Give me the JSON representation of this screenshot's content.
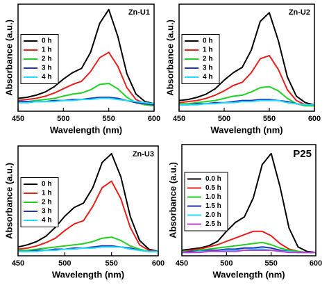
{
  "chart_data": [
    {
      "type": "line",
      "title": "Zn-U1",
      "xlabel": "Wavelength (nm)",
      "ylabel": "Absorbance (a.u.)",
      "x": [
        450,
        460,
        470,
        480,
        490,
        500,
        510,
        520,
        530,
        540,
        550,
        560,
        570,
        580,
        590,
        600
      ],
      "xlim": [
        450,
        600
      ],
      "xticks": [
        450,
        500,
        550,
        600
      ],
      "ylim": [
        0,
        1
      ],
      "legend": "center left",
      "series": [
        {
          "name": "0 h",
          "color": "#000000",
          "values": [
            0.12,
            0.13,
            0.15,
            0.18,
            0.23,
            0.3,
            0.36,
            0.4,
            0.55,
            0.82,
            0.95,
            0.7,
            0.35,
            0.16,
            0.09,
            0.07
          ]
        },
        {
          "name": "1 h",
          "color": "#e8201c",
          "values": [
            0.1,
            0.11,
            0.12,
            0.14,
            0.17,
            0.21,
            0.25,
            0.28,
            0.37,
            0.5,
            0.55,
            0.42,
            0.22,
            0.11,
            0.07,
            0.06
          ]
        },
        {
          "name": "2 h",
          "color": "#22d022",
          "values": [
            0.09,
            0.09,
            0.1,
            0.11,
            0.12,
            0.14,
            0.16,
            0.17,
            0.2,
            0.25,
            0.26,
            0.21,
            0.13,
            0.08,
            0.06,
            0.05
          ]
        },
        {
          "name": "3 h",
          "color": "#2233b8",
          "values": [
            0.09,
            0.09,
            0.09,
            0.09,
            0.1,
            0.1,
            0.11,
            0.11,
            0.12,
            0.13,
            0.13,
            0.12,
            0.1,
            0.08,
            0.07,
            0.06
          ]
        },
        {
          "name": "4 h",
          "color": "#22dcff",
          "values": [
            0.08,
            0.08,
            0.09,
            0.09,
            0.09,
            0.1,
            0.1,
            0.11,
            0.11,
            0.12,
            0.12,
            0.11,
            0.1,
            0.09,
            0.08,
            0.07
          ]
        }
      ]
    },
    {
      "type": "line",
      "title": "Zn-U2",
      "xlabel": "Wavelength (nm)",
      "ylabel": "Absorbance (a.u.)",
      "x": [
        450,
        460,
        470,
        480,
        490,
        500,
        510,
        520,
        530,
        540,
        550,
        560,
        570,
        580,
        590,
        600
      ],
      "xlim": [
        450,
        600
      ],
      "xticks": [
        450,
        500,
        550,
        600
      ],
      "ylim": [
        0,
        1
      ],
      "legend": "center left",
      "series": [
        {
          "name": "0 h",
          "color": "#000000",
          "values": [
            0.1,
            0.11,
            0.13,
            0.16,
            0.21,
            0.29,
            0.36,
            0.41,
            0.57,
            0.84,
            0.92,
            0.66,
            0.32,
            0.14,
            0.08,
            0.06
          ]
        },
        {
          "name": "1 h",
          "color": "#e8201c",
          "values": [
            0.08,
            0.09,
            0.1,
            0.12,
            0.15,
            0.19,
            0.24,
            0.27,
            0.36,
            0.49,
            0.52,
            0.39,
            0.2,
            0.1,
            0.06,
            0.05
          ]
        },
        {
          "name": "2 h",
          "color": "#22d022",
          "values": [
            0.07,
            0.07,
            0.08,
            0.09,
            0.1,
            0.12,
            0.14,
            0.15,
            0.18,
            0.22,
            0.23,
            0.19,
            0.12,
            0.07,
            0.05,
            0.05
          ]
        },
        {
          "name": "3 h",
          "color": "#2233b8",
          "values": [
            0.06,
            0.06,
            0.07,
            0.07,
            0.08,
            0.08,
            0.09,
            0.1,
            0.1,
            0.11,
            0.11,
            0.1,
            0.09,
            0.07,
            0.06,
            0.06
          ]
        },
        {
          "name": "4 h",
          "color": "#22dcff",
          "values": [
            0.06,
            0.06,
            0.06,
            0.07,
            0.07,
            0.08,
            0.08,
            0.09,
            0.09,
            0.1,
            0.1,
            0.1,
            0.08,
            0.07,
            0.06,
            0.06
          ]
        }
      ]
    },
    {
      "type": "line",
      "title": "Zn-U3",
      "xlabel": "Wavelength (nm)",
      "ylabel": "Absorbance (a.u.)",
      "x": [
        450,
        460,
        470,
        480,
        490,
        500,
        510,
        520,
        530,
        540,
        550,
        560,
        570,
        580,
        590,
        600
      ],
      "xlim": [
        450,
        600
      ],
      "xticks": [
        450,
        500,
        550,
        600
      ],
      "ylim": [
        0,
        1
      ],
      "legend": "center left",
      "series": [
        {
          "name": "0 h",
          "color": "#000000",
          "values": [
            0.08,
            0.1,
            0.13,
            0.18,
            0.26,
            0.36,
            0.44,
            0.48,
            0.62,
            0.85,
            0.93,
            0.72,
            0.36,
            0.14,
            0.06,
            0.04
          ]
        },
        {
          "name": "1 h",
          "color": "#e8201c",
          "values": [
            0.06,
            0.07,
            0.09,
            0.12,
            0.16,
            0.23,
            0.29,
            0.32,
            0.45,
            0.62,
            0.68,
            0.52,
            0.26,
            0.1,
            0.05,
            0.04
          ]
        },
        {
          "name": "2 h",
          "color": "#22d022",
          "values": [
            0.05,
            0.05,
            0.06,
            0.07,
            0.08,
            0.09,
            0.1,
            0.11,
            0.13,
            0.16,
            0.17,
            0.14,
            0.09,
            0.06,
            0.04,
            0.04
          ]
        },
        {
          "name": "3 h",
          "color": "#2233b8",
          "values": [
            0.04,
            0.04,
            0.05,
            0.05,
            0.06,
            0.06,
            0.07,
            0.07,
            0.08,
            0.09,
            0.09,
            0.08,
            0.07,
            0.05,
            0.04,
            0.04
          ]
        },
        {
          "name": "4 h",
          "color": "#22dcff",
          "values": [
            0.04,
            0.04,
            0.04,
            0.05,
            0.05,
            0.06,
            0.06,
            0.07,
            0.07,
            0.08,
            0.08,
            0.08,
            0.06,
            0.05,
            0.04,
            0.04
          ]
        }
      ]
    },
    {
      "type": "line",
      "title": "P25",
      "xlabel": "Wavelength (nm)",
      "ylabel": "Absorbance (a.u.)",
      "x": [
        450,
        460,
        470,
        480,
        490,
        500,
        510,
        520,
        530,
        540,
        550,
        560,
        570,
        580,
        590,
        600
      ],
      "xlim": [
        450,
        600
      ],
      "xticks": [
        450,
        500,
        550,
        600
      ],
      "ylim": [
        0,
        1
      ],
      "legend": "center left",
      "series": [
        {
          "name": "0.0 h",
          "color": "#000000",
          "values": [
            0.05,
            0.06,
            0.07,
            0.09,
            0.13,
            0.22,
            0.3,
            0.35,
            0.52,
            0.82,
            0.92,
            0.62,
            0.25,
            0.08,
            0.04,
            0.03
          ]
        },
        {
          "name": "0.5 h",
          "color": "#e8201c",
          "values": [
            0.04,
            0.05,
            0.06,
            0.08,
            0.1,
            0.13,
            0.16,
            0.19,
            0.22,
            0.22,
            0.18,
            0.11,
            0.06,
            0.04,
            0.03,
            0.03
          ]
        },
        {
          "name": "1.0 h",
          "color": "#22d022",
          "values": [
            0.04,
            0.04,
            0.05,
            0.06,
            0.07,
            0.08,
            0.09,
            0.1,
            0.11,
            0.12,
            0.1,
            0.07,
            0.05,
            0.04,
            0.03,
            0.03
          ]
        },
        {
          "name": "1.5 h",
          "color": "#2233b8",
          "values": [
            0.03,
            0.04,
            0.04,
            0.05,
            0.05,
            0.06,
            0.06,
            0.07,
            0.07,
            0.08,
            0.07,
            0.05,
            0.04,
            0.03,
            0.03,
            0.03
          ]
        },
        {
          "name": "2.0 h",
          "color": "#22dcff",
          "values": [
            0.03,
            0.03,
            0.04,
            0.04,
            0.04,
            0.05,
            0.05,
            0.05,
            0.06,
            0.06,
            0.05,
            0.04,
            0.04,
            0.03,
            0.03,
            0.03
          ]
        },
        {
          "name": "2.5 h",
          "color": "#c040d0",
          "values": [
            0.03,
            0.03,
            0.03,
            0.04,
            0.04,
            0.04,
            0.04,
            0.05,
            0.05,
            0.05,
            0.05,
            0.04,
            0.03,
            0.03,
            0.03,
            0.03
          ]
        }
      ]
    }
  ]
}
